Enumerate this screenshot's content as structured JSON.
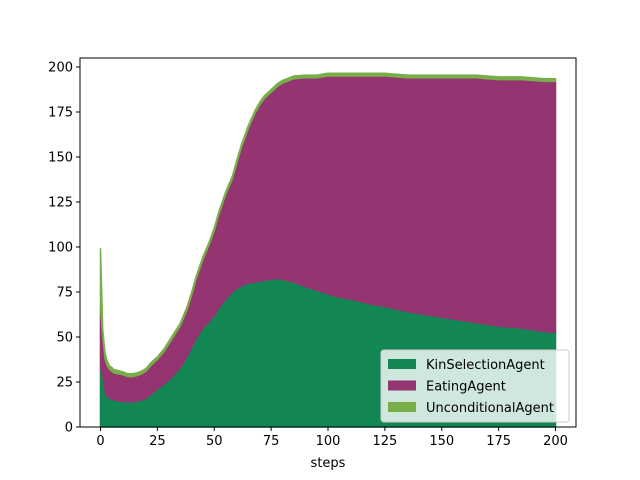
{
  "chart_data": {
    "type": "area",
    "stacked": true,
    "xlabel": "steps",
    "ylabel": "",
    "title": "",
    "xlim": [
      -9,
      209
    ],
    "ylim": [
      0,
      205
    ],
    "xticks": [
      0,
      25,
      50,
      75,
      100,
      125,
      150,
      175,
      200
    ],
    "yticks": [
      0,
      25,
      50,
      75,
      100,
      125,
      150,
      175,
      200
    ],
    "legend_position": "lower-right",
    "grid": false,
    "x": [
      0,
      1,
      2,
      3,
      4,
      5,
      6,
      7,
      8,
      10,
      12,
      14,
      16,
      18,
      20,
      22,
      25,
      28,
      30,
      33,
      35,
      38,
      40,
      42,
      45,
      48,
      50,
      52,
      55,
      58,
      60,
      62,
      65,
      68,
      70,
      72,
      75,
      78,
      80,
      85,
      90,
      95,
      100,
      105,
      110,
      115,
      120,
      125,
      130,
      135,
      140,
      145,
      150,
      155,
      160,
      165,
      170,
      175,
      180,
      185,
      190,
      195,
      200
    ],
    "series": [
      {
        "name": "KinSelectionAgent",
        "color": "#128753",
        "values": [
          33,
          28,
          20,
          17,
          16,
          15.5,
          15,
          14.8,
          14.5,
          14.2,
          14,
          14,
          14.3,
          15,
          16,
          18,
          21,
          24,
          26,
          30,
          33,
          39,
          44,
          49,
          55,
          59,
          62,
          66,
          71,
          75,
          77,
          78.5,
          80,
          80.5,
          81,
          81.5,
          82,
          82.5,
          82,
          80.5,
          78,
          76,
          74,
          72,
          71,
          69.5,
          68,
          67,
          65.5,
          64,
          63,
          62,
          61,
          60,
          59,
          58,
          57,
          56,
          55.5,
          55,
          54,
          53,
          52.5
        ]
      },
      {
        "name": "EatingAgent",
        "color": "#943471",
        "values": [
          33,
          22,
          18,
          17,
          16,
          15.5,
          15,
          15,
          15,
          14.8,
          14,
          14,
          14.2,
          14.5,
          15,
          16,
          16.5,
          18,
          20,
          22,
          23,
          26,
          29,
          33,
          38,
          43,
          47,
          52,
          58,
          63,
          70,
          77,
          86,
          94,
          98,
          101,
          104,
          107,
          109,
          113,
          116,
          118,
          121,
          123,
          124,
          125.5,
          127,
          128,
          129,
          130,
          131,
          132,
          133,
          134,
          135,
          136,
          136.5,
          137,
          137.5,
          138,
          138.5,
          139,
          139.5
        ]
      },
      {
        "name": "UnconditionalAgent",
        "color": "#78AE49",
        "values": [
          33,
          4,
          3,
          2.5,
          2,
          2,
          1.8,
          1.8,
          1.8,
          1.6,
          1.6,
          1.6,
          1.6,
          1.5,
          1.5,
          1.5,
          1.5,
          1.5,
          1.5,
          1.5,
          1.5,
          1.5,
          1.5,
          1.5,
          1.5,
          1.5,
          1.5,
          1.5,
          1.5,
          1.5,
          1.5,
          1.5,
          1.5,
          1.5,
          1.5,
          1.5,
          1.5,
          1.5,
          1.5,
          1.5,
          1.5,
          1.5,
          1.5,
          1.5,
          1.5,
          1.5,
          1.5,
          1.5,
          1.5,
          1.5,
          1.5,
          1.5,
          1.5,
          1.5,
          1.5,
          1.5,
          1.5,
          1.5,
          1.5,
          1.5,
          1.5,
          1.5,
          1.5
        ]
      }
    ]
  }
}
